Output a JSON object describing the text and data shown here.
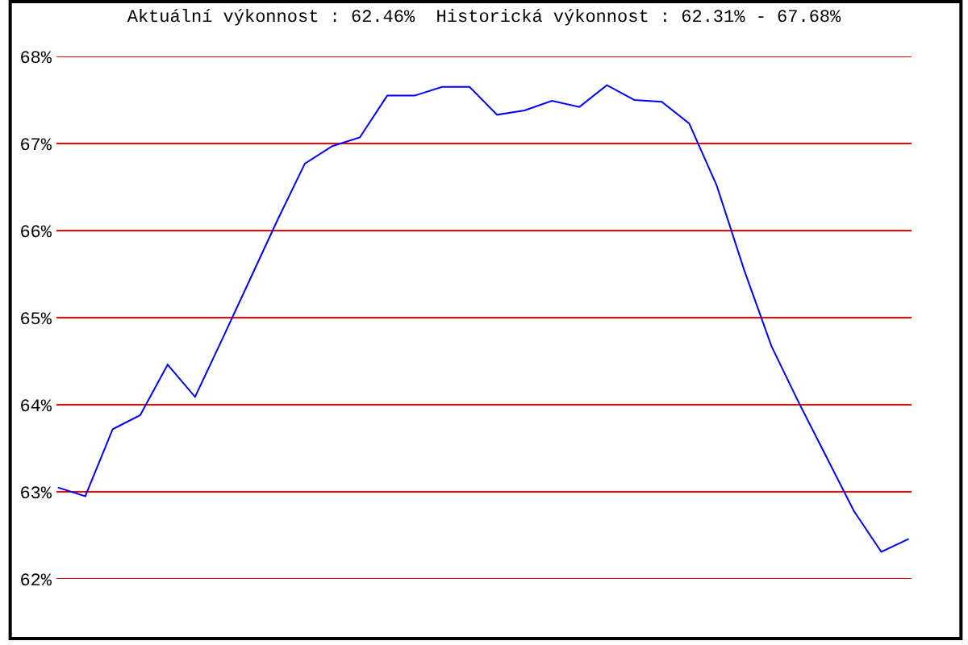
{
  "chart_data": {
    "type": "line",
    "title": "Aktuální výkonnost : 62.46%  Historická výkonnost : 62.31% - 67.68%",
    "categories": [
      null,
      null,
      null,
      null,
      null,
      null,
      null,
      null,
      null,
      null,
      null,
      null,
      null,
      null,
      null,
      null,
      null,
      null,
      null,
      null,
      null,
      null,
      null,
      null,
      null,
      null,
      null,
      null,
      null,
      null,
      null,
      null
    ],
    "series": [
      {
        "color": "#0000ff",
        "values": [
          63.05,
          62.95,
          63.72,
          63.88,
          64.46,
          64.09,
          64.76,
          65.44,
          66.12,
          66.77,
          66.97,
          67.07,
          67.55,
          67.55,
          67.65,
          67.65,
          67.33,
          67.38,
          67.49,
          67.42,
          67.67,
          67.5,
          67.48,
          67.23,
          66.52,
          65.55,
          64.67,
          64.02,
          63.4,
          62.78,
          62.31,
          62.46
        ]
      }
    ],
    "ylim": [
      62,
      68
    ],
    "yticks": [
      {
        "value": 62,
        "label": "62%"
      },
      {
        "value": 63,
        "label": "63%"
      },
      {
        "value": 64,
        "label": "64%"
      },
      {
        "value": 65,
        "label": "65%"
      },
      {
        "value": 66,
        "label": "66%"
      },
      {
        "value": 67,
        "label": "67%"
      },
      {
        "value": 68,
        "label": "68%"
      }
    ],
    "grid": "y",
    "marker": "none",
    "line_style": "solid"
  }
}
